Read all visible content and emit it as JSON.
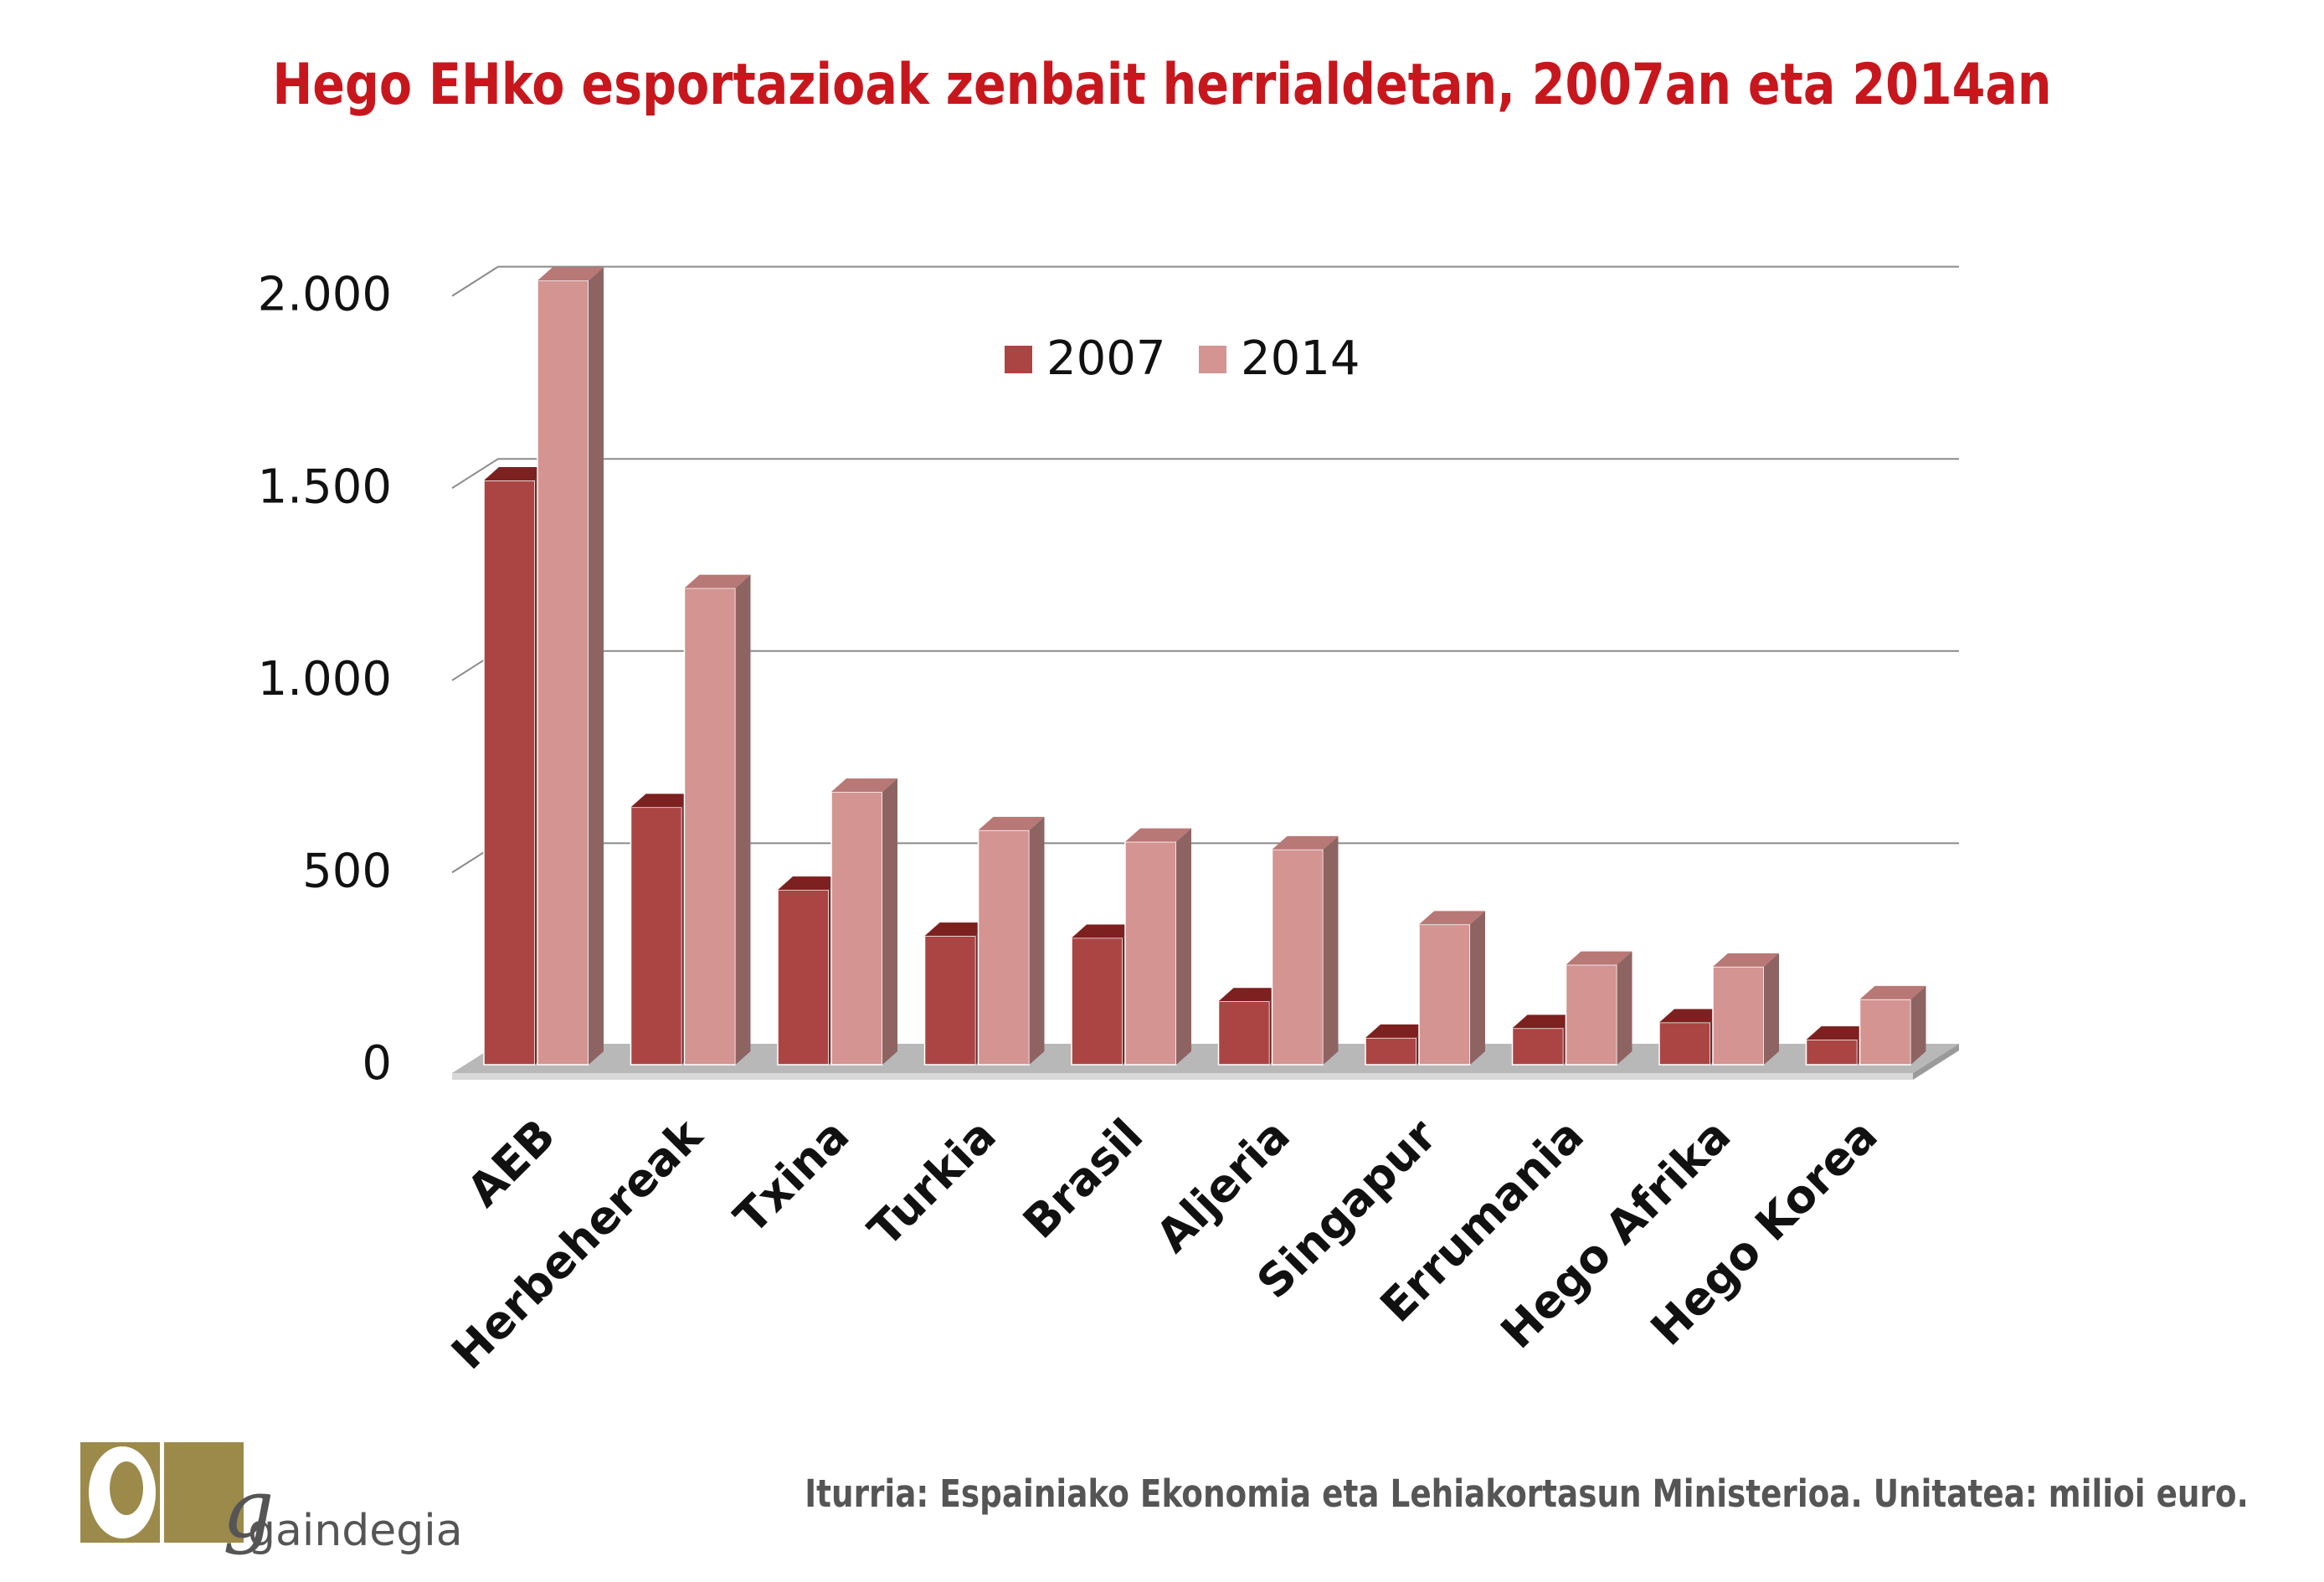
{
  "title": "Hego EHko esportazioak zenbait herrialdetan, 2007an eta 2014an",
  "source": "Iturria: Espainiako Ekonomia eta Lehiakortasun Ministerioa. Unitatea: milioi euro.",
  "logo": {
    "text": "gaindegia"
  },
  "colors": {
    "s2007": "#ab4543",
    "s2014": "#d39492",
    "title": "#c8161d"
  },
  "chart_data": {
    "type": "bar",
    "title": "Hego EHko esportazioak zenbait herrialdetan, 2007an eta 2014an",
    "xlabel": "",
    "ylabel": "",
    "ylim": [
      0,
      2000
    ],
    "yticks": [
      0,
      500,
      1000,
      1500,
      2000
    ],
    "ytick_labels": [
      "0",
      "500",
      "1.000",
      "1.500",
      "2.000"
    ],
    "grid": true,
    "legend": "top-center",
    "categories": [
      "AEB",
      "Herbehereak",
      "Txina",
      "Turkia",
      "Brasil",
      "Aljeria",
      "Singapur",
      "Errumania",
      "Hego Afrika",
      "Hego Korea"
    ],
    "series": [
      {
        "name": "2007",
        "values": [
          1520,
          670,
          455,
          335,
          330,
          165,
          70,
          95,
          110,
          65
        ]
      },
      {
        "name": "2014",
        "values": [
          2040,
          1240,
          710,
          610,
          580,
          560,
          365,
          260,
          255,
          170
        ]
      }
    ]
  }
}
